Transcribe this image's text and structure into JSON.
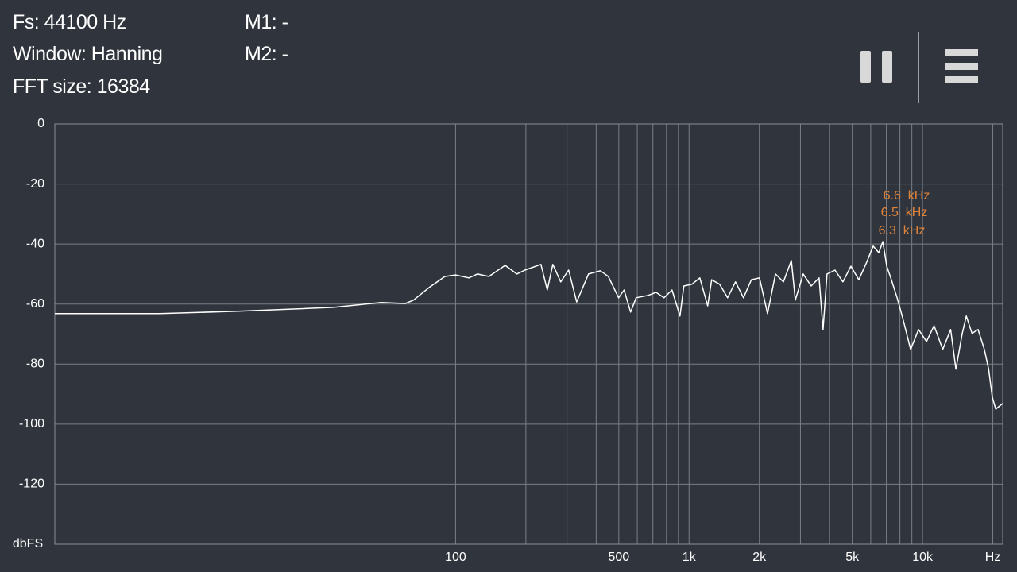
{
  "header": {
    "fs": "Fs: 44100 Hz",
    "window": "Window: Hanning",
    "fft_size": "FFT size: 16384",
    "m1": "M1: -",
    "m2": "M2: -"
  },
  "chart_data": {
    "type": "line",
    "x_scale": "log",
    "grid": true,
    "color": "#ffffff",
    "y_label": "dbFS",
    "xlim": [
      1.92,
      22050
    ],
    "ylim": [
      -140,
      0
    ],
    "yticks": [
      0,
      -20,
      -40,
      -60,
      -80,
      -100,
      -120
    ],
    "xticks": [
      100,
      500,
      {
        "value": 1000,
        "label": "1k"
      },
      {
        "value": 2000,
        "label": "2k"
      },
      {
        "value": 5000,
        "label": "5k"
      },
      {
        "value": 10000,
        "label": "10k"
      },
      {
        "value": 20000,
        "label": "Hz"
      }
    ],
    "xgrid": [
      100,
      200,
      300,
      400,
      500,
      600,
      700,
      800,
      900,
      1000,
      2000,
      3000,
      4000,
      5000,
      6000,
      7000,
      8000,
      9000,
      10000,
      20000
    ],
    "x": [
      1.92,
      5.4,
      11.7,
      30,
      48,
      61,
      66,
      77,
      90,
      100,
      114,
      124,
      139,
      163,
      183,
      198,
      232,
      247,
      261,
      282,
      305,
      330,
      371,
      417,
      451,
      499,
      527,
      562,
      593,
      668,
      722,
      781,
      845,
      914,
      950,
      1028,
      1112,
      1202,
      1250,
      1352,
      1462,
      1581,
      1710,
      1849,
      2003,
      2168,
      2344,
      2535,
      2742,
      2851,
      3083,
      3334,
      3606,
      3750,
      3899,
      4217,
      4560,
      4932,
      5333,
      5768,
      6146,
      6500,
      6761,
      7031,
      7311,
      7782,
      8222,
      8892,
      9616,
      10400,
      11200,
      12200,
      13200,
      13900,
      14800,
      15400,
      16300,
      17300,
      18400,
      19200,
      19900,
      20600,
      22050
    ],
    "values": [
      -63.2,
      -63.2,
      -62.4,
      -61.1,
      -59.5,
      -59.8,
      -58.7,
      -54.5,
      -50.8,
      -50.3,
      -51.3,
      -50.0,
      -50.8,
      -47.1,
      -50.0,
      -48.7,
      -46.8,
      -55.3,
      -46.8,
      -52.6,
      -48.7,
      -59.3,
      -50.0,
      -48.9,
      -50.8,
      -57.9,
      -55.3,
      -62.7,
      -57.9,
      -57.1,
      -56.1,
      -57.9,
      -55.3,
      -64.0,
      -54.0,
      -53.4,
      -51.3,
      -60.6,
      -51.9,
      -53.4,
      -57.9,
      -52.6,
      -57.9,
      -51.9,
      -51.3,
      -63.2,
      -50.0,
      -52.6,
      -45.5,
      -58.7,
      -50.0,
      -54.0,
      -51.3,
      -68.5,
      -50.0,
      -48.7,
      -52.6,
      -47.4,
      -51.9,
      -46.0,
      -40.7,
      -42.9,
      -39.2,
      -47.4,
      -51.3,
      -57.9,
      -64.6,
      -75.1,
      -68.5,
      -72.5,
      -67.2,
      -75.1,
      -68.5,
      -81.7,
      -69.8,
      -64.0,
      -69.8,
      -68.5,
      -75.1,
      -81.7,
      -91.0,
      -95.0,
      -93.1
    ],
    "annotations": [
      {
        "text": "6.6  kHz",
        "color": "#e0833a"
      },
      {
        "text": "6.5  kHz",
        "color": "#e0833a"
      },
      {
        "text": "6.3  kHz",
        "color": "#e0833a"
      }
    ]
  }
}
